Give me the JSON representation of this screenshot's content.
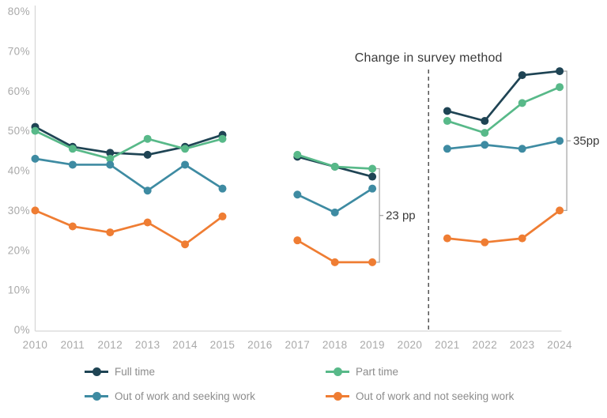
{
  "chart_data": {
    "type": "line",
    "title": "",
    "categories": [
      "2010",
      "2011",
      "2012",
      "2013",
      "2014",
      "2015",
      "2016",
      "2017",
      "2018",
      "2019",
      "2020",
      "2021",
      "2022",
      "2023",
      "2024"
    ],
    "y_axis": {
      "min": 0,
      "max": 80,
      "step": 10,
      "suffix": "%"
    },
    "grid": "off",
    "legend_position": "bottom",
    "series": [
      {
        "name": "Full time",
        "color": "#1f4454",
        "values": [
          51,
          46,
          44.5,
          44,
          46,
          49,
          null,
          43.5,
          41,
          38.5,
          null,
          55,
          52.5,
          64,
          65
        ]
      },
      {
        "name": "Part time",
        "color": "#58b989",
        "values": [
          50,
          45.5,
          43,
          48,
          45.5,
          48,
          null,
          44,
          41,
          40.5,
          null,
          52.5,
          49.5,
          57,
          61
        ]
      },
      {
        "name": "Out of work and seeking work",
        "color": "#3e8ba2",
        "values": [
          43,
          41.5,
          41.5,
          35,
          41.5,
          35.5,
          null,
          34,
          29.5,
          35.5,
          null,
          45.5,
          46.5,
          45.5,
          47.5
        ]
      },
      {
        "name": "Out of work and not seeking work",
        "color": "#ef7d33",
        "values": [
          30,
          26,
          24.5,
          27,
          21.5,
          28.5,
          null,
          22.5,
          17,
          17,
          null,
          23,
          22,
          23,
          30
        ]
      }
    ],
    "annotations": {
      "survey_change": {
        "label": "Change in survey method",
        "divider_between": [
          "2020",
          "2021"
        ]
      },
      "brackets": [
        {
          "label": "23 pp",
          "at_category": "2019",
          "from": 40.5,
          "to": 17
        },
        {
          "label": "35pp",
          "at_category": "2024",
          "from": 65,
          "to": 30
        }
      ]
    },
    "axis_color": "#d8d8d8",
    "tick_label_color": "#a9a9a9",
    "annotation_text_color": "#3a3a3a",
    "legend_text_color": "#8c8c8c"
  }
}
